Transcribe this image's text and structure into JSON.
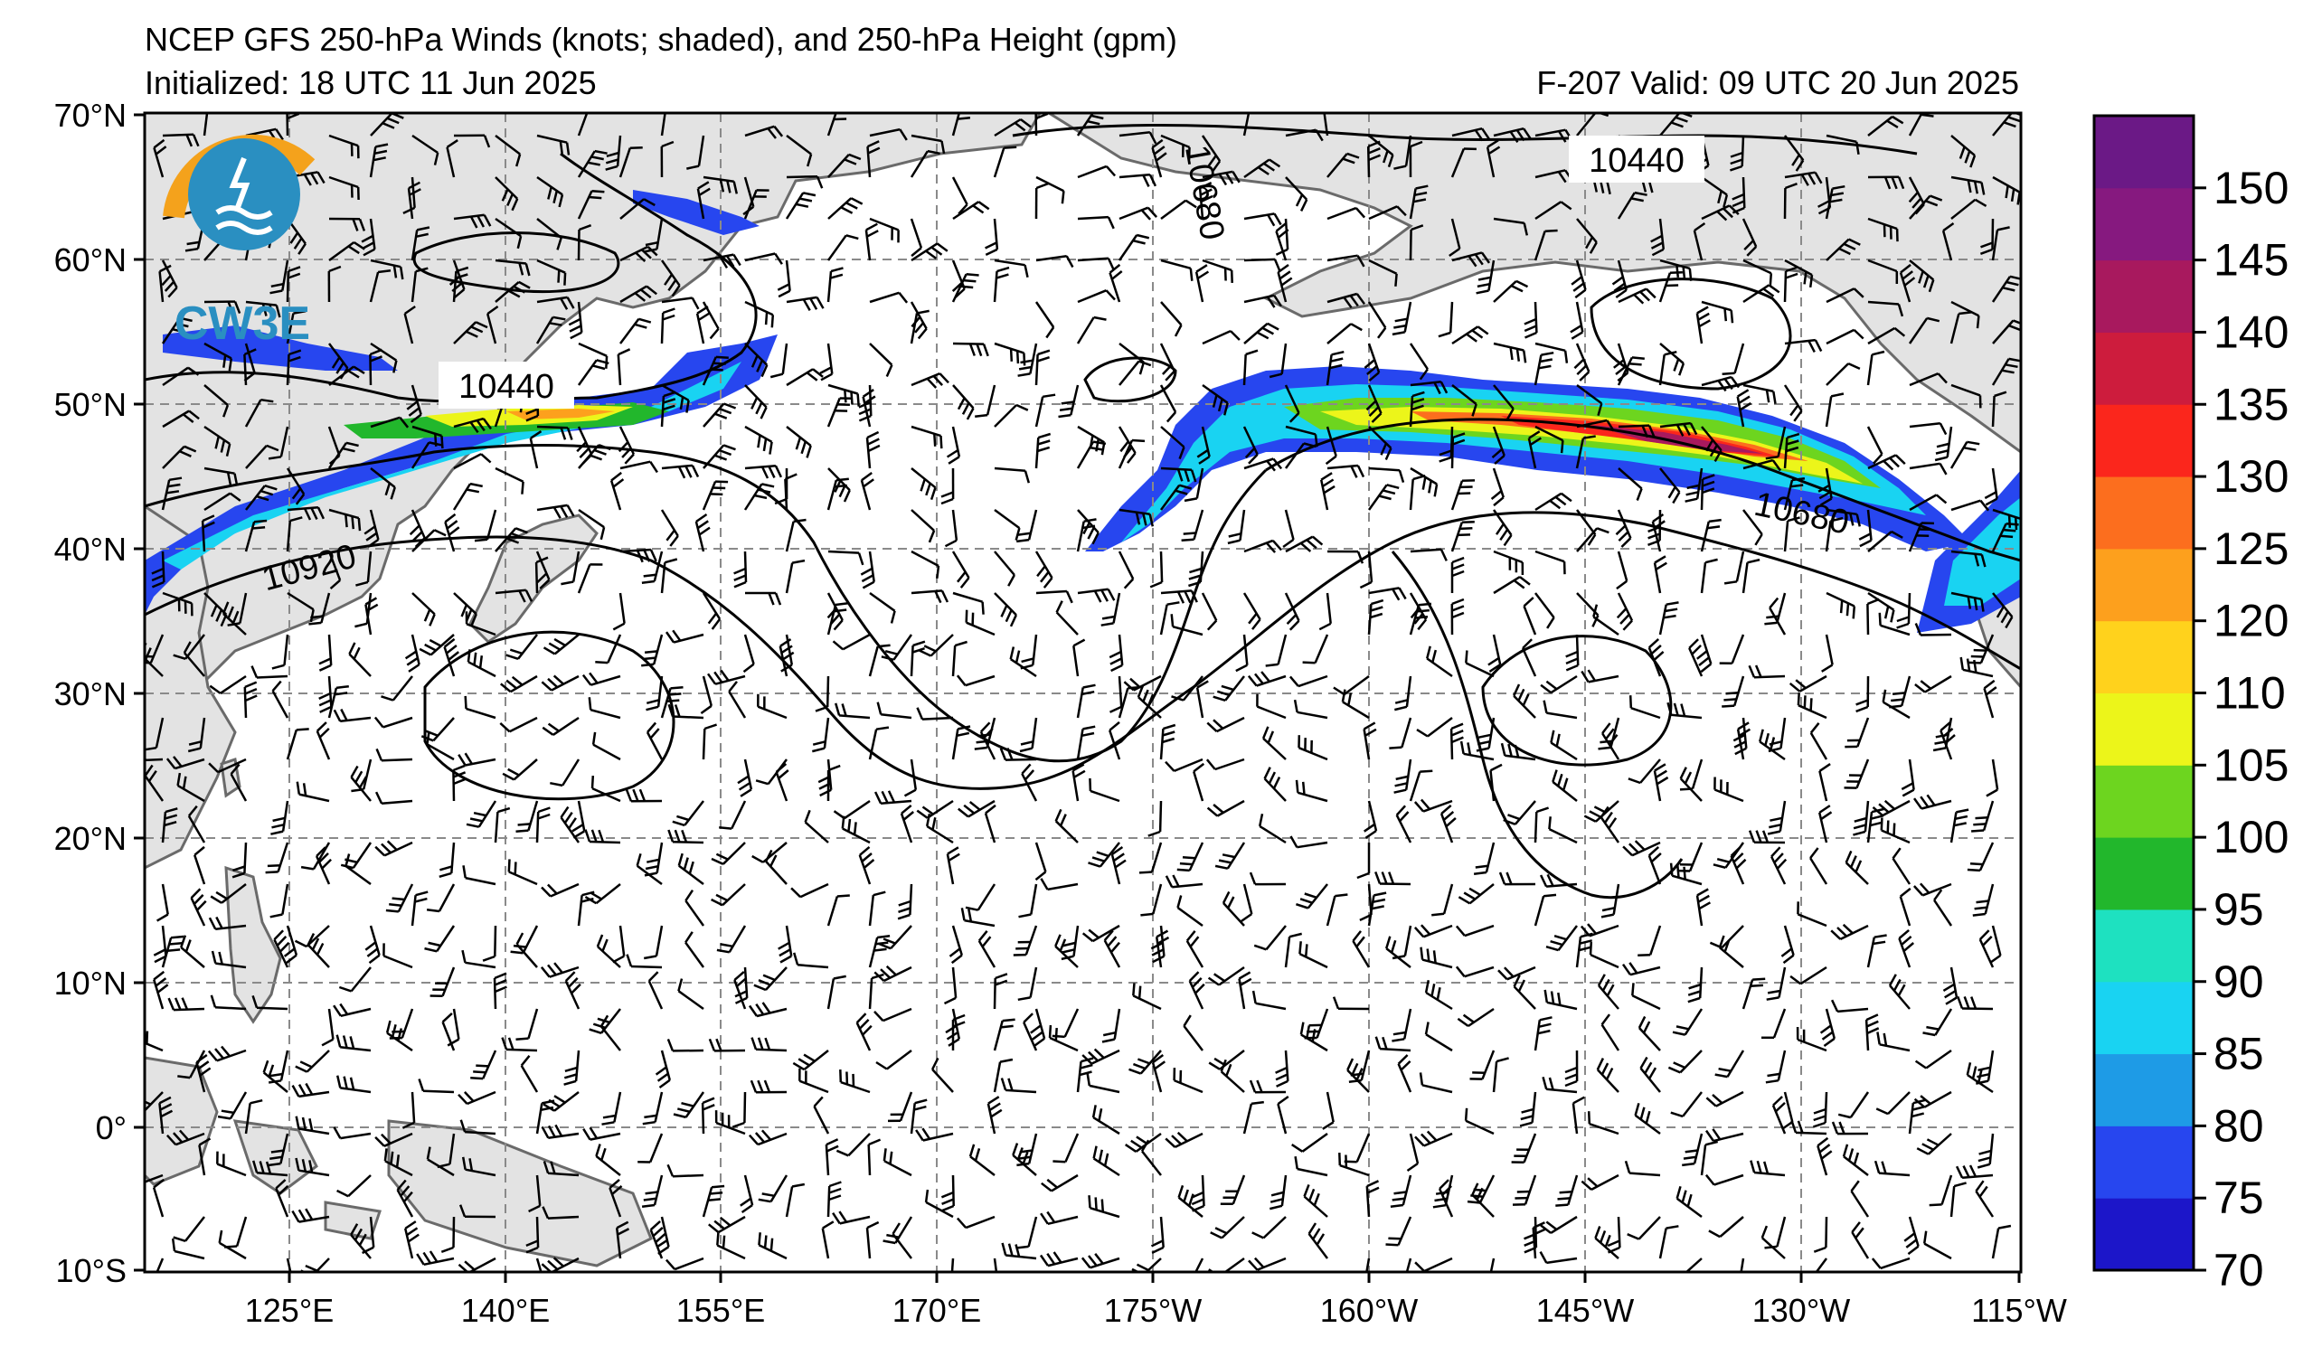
{
  "header": {
    "title": "NCEP GFS 250-hPa Winds (knots; shaded), and 250-hPa Height (gpm)",
    "initialized": "Initialized: 18 UTC 11 Jun 2025",
    "valid": "F-207  Valid: 09 UTC 20 Jun 2025"
  },
  "logo": {
    "text": "CW3E"
  },
  "map": {
    "lat_labels": [
      "70°N",
      "60°N",
      "50°N",
      "40°N",
      "30°N",
      "20°N",
      "10°N",
      "0°",
      "10°S"
    ],
    "lon_labels": [
      "125°E",
      "140°E",
      "155°E",
      "170°E",
      "175°W",
      "160°W",
      "145°W",
      "130°W",
      "115°W"
    ],
    "contour_labels": [
      "10440",
      "10440",
      "10680",
      "10680",
      "10920"
    ]
  },
  "colorbar": {
    "ticks": [
      "70",
      "75",
      "80",
      "85",
      "90",
      "95",
      "100",
      "105",
      "110",
      "120",
      "125",
      "130",
      "135",
      "140",
      "145",
      "150"
    ],
    "colors": [
      "#1c16c9",
      "#2746ef",
      "#1e9be6",
      "#19d3f2",
      "#1ee1c0",
      "#22b72c",
      "#6dd51f",
      "#ecf51a",
      "#ffd21c",
      "#fda01d",
      "#fc6e1e",
      "#fb261c",
      "#cd1c3d",
      "#a8195e",
      "#86197f",
      "#6b1986"
    ]
  },
  "colors": {
    "land": "#e3e3e3",
    "coast": "#6a6a6a",
    "grid": "#8a8a8a",
    "contour": "#000000"
  }
}
